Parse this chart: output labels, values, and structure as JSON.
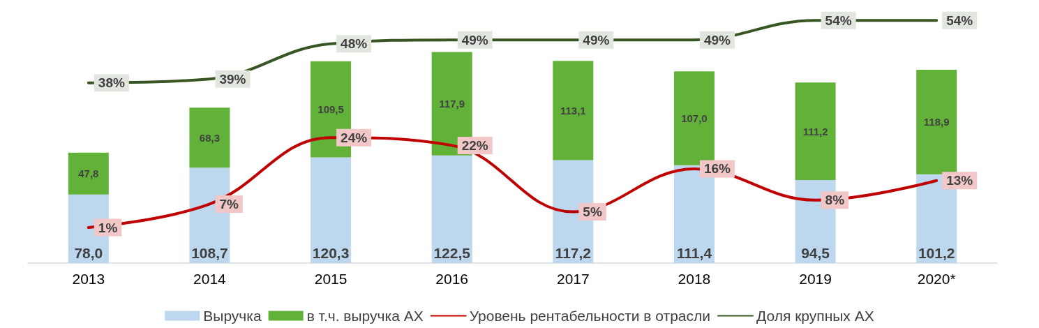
{
  "chart_data": {
    "type": "bar",
    "stacked": true,
    "categories": [
      "2013",
      "2014",
      "2015",
      "2016",
      "2017",
      "2018",
      "2019",
      "2020*"
    ],
    "series": [
      {
        "name": "Выручка",
        "color": "#bdd7ee",
        "values": [
          78.0,
          108.7,
          120.3,
          122.5,
          117.2,
          111.4,
          94.5,
          101.2
        ],
        "value_labels": [
          "78,0",
          "108,7",
          "120,3",
          "122,5",
          "117,2",
          "111,4",
          "94,5",
          "101,2"
        ]
      },
      {
        "name": "в т.ч. выручка АХ",
        "color": "#62b23a",
        "values": [
          47.8,
          68.3,
          109.5,
          117.9,
          113.1,
          107.0,
          111.2,
          118.9
        ],
        "value_labels": [
          "47,8",
          "68,3",
          "109,5",
          "117,9",
          "113,1",
          "107,0",
          "111,2",
          "118,9"
        ]
      },
      {
        "name": "Уровень рентабельности в отрасли",
        "type": "line",
        "axis": "y2",
        "color": "#c00000",
        "values": [
          1,
          7,
          24,
          22,
          5,
          16,
          8,
          13
        ],
        "value_labels": [
          "1%",
          "7%",
          "24%",
          "22%",
          "5%",
          "16%",
          "8%",
          "13%"
        ]
      },
      {
        "name": "Доля крупных АХ",
        "type": "line",
        "axis": "y2",
        "color": "#375623",
        "values": [
          38,
          39,
          48,
          49,
          49,
          49,
          54,
          54
        ],
        "value_labels": [
          "38%",
          "39%",
          "48%",
          "49%",
          "49%",
          "49%",
          "54%",
          "54%"
        ]
      }
    ],
    "tick_labels": "x",
    "grid": false,
    "legend": "bottom",
    "marker": "none",
    "line_style": "solid"
  }
}
